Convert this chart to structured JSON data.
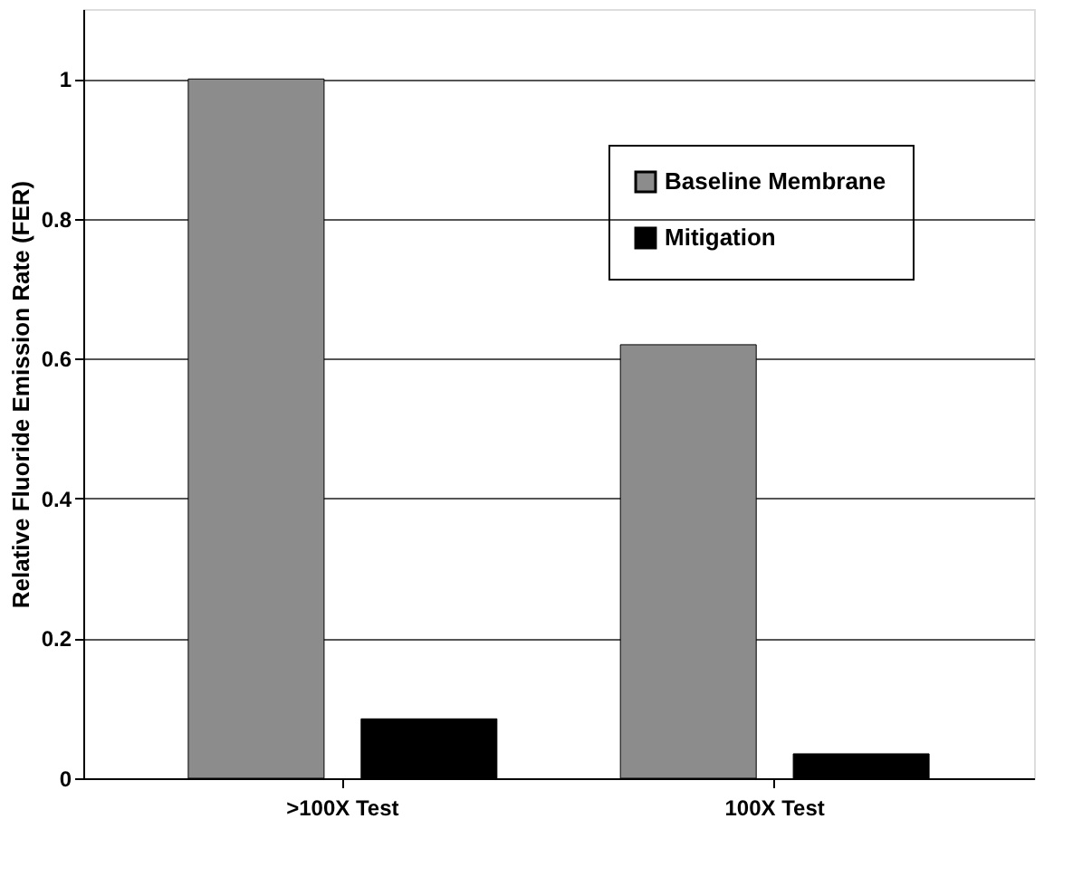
{
  "chart_data": {
    "type": "bar",
    "ylabel": "Relative Fluoride Emission Rate (FER)",
    "categories": [
      ">100X Test",
      "100X Test"
    ],
    "series": [
      {
        "name": "Baseline Membrane",
        "color": "#8c8c8c",
        "values": [
          1.0,
          0.62
        ]
      },
      {
        "name": "Mitigation",
        "color": "#000000",
        "values": [
          0.085,
          0.035
        ]
      }
    ],
    "ylim": [
      0,
      1.1
    ],
    "yticks": [
      0,
      0.2,
      0.4,
      0.6,
      0.8,
      1
    ],
    "grid": "y",
    "legend": "top right"
  }
}
